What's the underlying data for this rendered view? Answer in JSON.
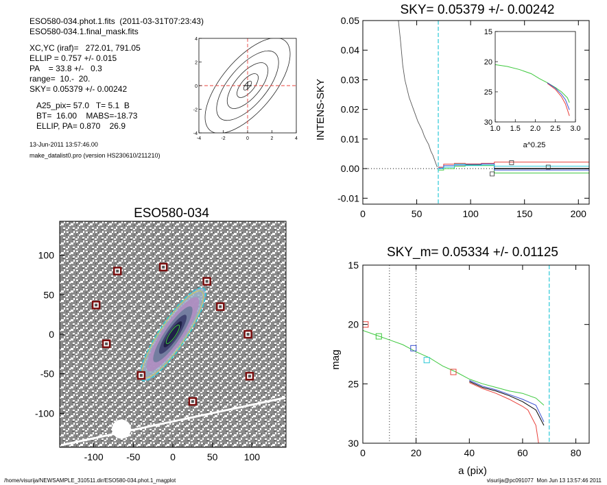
{
  "header": {
    "file_line": "ESO580-034.phot.1.fits  (2011-03-31T07:23:43)",
    "mask_line": "ESO580-034.1.final_mask.fits",
    "params": [
      "XC,YC (iraf)=   272.01, 791.05",
      "ELLIP = 0.757 +/- 0.015",
      "PA    = 33.8 +/-   0.3",
      "range=  10.-  20.",
      "SKY= 0.05379 +/- 0.00242"
    ],
    "catalog": [
      "A25_pix= 57.0   T= 5.1  B",
      "BT=  16.00    MABS=-18.73",
      "ELLIP, PA= 0.870    26.9"
    ],
    "date": "13-Jun-2011 13:57:46.00",
    "program": "make_datalist0.pro (version HS230610/211210)"
  },
  "footer": {
    "path": "/home/visurija/NEWSAMPLE_310511.dir/ESO580-034.phot.1_magplot",
    "user": "visurija@pc091077  Mon Jun 13 13:57:46 2011"
  },
  "colors": {
    "red": "#e8403a",
    "green": "#3cc83c",
    "blue": "#3a50d0",
    "cyan": "#28c8d8",
    "image_gray": "#8a8a8a",
    "marker": "#7a0f0f"
  },
  "chart_data": [
    {
      "id": "contour",
      "type": "contour",
      "xlim": [
        -4,
        4
      ],
      "ylim": [
        -4,
        4
      ],
      "x_ticks": [
        "-4",
        "-2",
        "0",
        "2",
        "4"
      ],
      "y_ticks": [
        "-4",
        "-2",
        "0",
        "2",
        "4"
      ],
      "center_crosshair": [
        0,
        0
      ],
      "levels_semi_axes": [
        [
          0.45,
          0.2
        ],
        [
          1.2,
          0.55
        ],
        [
          2.3,
          1.05
        ],
        [
          3.5,
          1.6
        ],
        [
          4.8,
          2.2
        ]
      ],
      "orientation_deg": -50
    },
    {
      "id": "sky_profile",
      "type": "line",
      "title": "SKY= 0.05379 +/- 0.00242",
      "xlabel": "",
      "ylabel": "INTENS-SKY",
      "xlim": [
        0,
        210
      ],
      "ylim": [
        -0.012,
        0.05
      ],
      "x_ticks": [
        "0",
        "50",
        "100",
        "150",
        "200"
      ],
      "y_ticks": [
        "-0.01",
        "0.00",
        "0.01",
        "0.02",
        "0.03",
        "0.04",
        "0.05"
      ],
      "vline": 70,
      "profile": {
        "x": [
          33,
          35,
          37,
          39,
          41,
          43,
          45,
          47,
          49,
          51,
          53,
          55,
          57,
          59,
          61,
          63,
          65,
          67,
          69
        ],
        "y": [
          0.05,
          0.043,
          0.035,
          0.03,
          0.027,
          0.024,
          0.022,
          0.02,
          0.018,
          0.016,
          0.0145,
          0.013,
          0.011,
          0.0095,
          0.0082,
          0.006,
          0.0045,
          0.0025,
          0.0005
        ]
      },
      "sky_steps": [
        {
          "name": "red",
          "x": [
            70,
            75,
            85,
            95,
            110,
            122,
            210
          ],
          "y": [
            0.0005,
            0.0015,
            0.0018,
            0.0016,
            0.0018,
            0.0022,
            0.0022
          ]
        },
        {
          "name": "green",
          "x": [
            70,
            75,
            85,
            95,
            110,
            122,
            210
          ],
          "y": [
            -0.0005,
            0.0,
            0.0008,
            0.0012,
            0.001,
            -0.0015,
            -0.0025
          ]
        },
        {
          "name": "blue",
          "x": [
            70,
            75,
            85,
            95,
            110,
            122,
            210
          ],
          "y": [
            0.0002,
            0.001,
            0.0012,
            0.0014,
            0.0016,
            -0.0005,
            -0.0005
          ]
        },
        {
          "name": "cyan",
          "x": [
            70,
            75,
            85,
            95,
            110,
            122,
            210
          ],
          "y": [
            0.0,
            0.0005,
            0.0015,
            0.001,
            0.0012,
            0.0008,
            0.0008
          ]
        },
        {
          "name": "black",
          "x": [
            122,
            210
          ],
          "y": [
            0.0,
            0.0
          ]
        }
      ],
      "boxes": [
        [
          120,
          -0.0018
        ],
        [
          138,
          0.002
        ],
        [
          172,
          0.0005
        ]
      ]
    },
    {
      "id": "inset",
      "type": "line",
      "xlabel": "a^0.25",
      "xlim": [
        1.0,
        3.0
      ],
      "ylim": [
        30,
        15
      ],
      "x_ticks": [
        "1.0",
        "1.5",
        "2.0",
        "2.5",
        "3.0"
      ],
      "y_ticks": [
        "15",
        "20",
        "25",
        "30"
      ],
      "series": [
        {
          "name": "green",
          "x": [
            1.0,
            1.3,
            1.6,
            1.9,
            2.1,
            2.3,
            2.5,
            2.65,
            2.8,
            2.85
          ],
          "y": [
            20.5,
            20.8,
            21.3,
            22.0,
            22.8,
            23.5,
            24.3,
            25.0,
            26.0,
            26.8
          ]
        },
        {
          "name": "red",
          "x": [
            2.3,
            2.5,
            2.65,
            2.75,
            2.85
          ],
          "y": [
            23.6,
            24.6,
            25.8,
            27.0,
            29.0
          ]
        },
        {
          "name": "blue",
          "x": [
            2.3,
            2.5,
            2.65,
            2.75,
            2.85
          ],
          "y": [
            23.5,
            24.4,
            25.4,
            26.3,
            28.0
          ]
        }
      ]
    },
    {
      "id": "galaxy_image",
      "type": "image",
      "title": "ESO580-034",
      "xlim": [
        -143,
        143
      ],
      "ylim": [
        -143,
        143
      ],
      "x_ticks": [
        "-100",
        "-50",
        "0",
        "50",
        "100"
      ],
      "y_ticks": [
        "100",
        "50",
        "0",
        "-50",
        "-100"
      ],
      "ellipse": {
        "cx": 0,
        "cy": 0,
        "a": 70,
        "b": 17,
        "pa_deg": 33.8
      },
      "stars": [
        [
          -70,
          80
        ],
        [
          -12,
          85
        ],
        [
          43,
          67
        ],
        [
          -97,
          37
        ],
        [
          60,
          35
        ],
        [
          -84,
          -12
        ],
        [
          95,
          0
        ],
        [
          -40,
          -52
        ],
        [
          97,
          -53
        ],
        [
          25,
          -85
        ]
      ]
    },
    {
      "id": "mag_profile",
      "type": "line",
      "title": "SKY_m=  0.05334 +/- 0.01125",
      "xlabel": "a (pix)",
      "ylabel": "mag",
      "xlim": [
        0,
        85
      ],
      "ylim": [
        30,
        15
      ],
      "x_ticks": [
        "0",
        "20",
        "40",
        "60",
        "80"
      ],
      "y_ticks": [
        "15",
        "20",
        "25",
        "30"
      ],
      "vlines_dotted": [
        10,
        20
      ],
      "vline_cyan": 70,
      "series": [
        {
          "name": "green",
          "x": [
            0,
            5,
            10,
            15,
            20,
            25,
            30,
            35,
            40,
            45,
            50,
            55,
            60,
            65,
            68
          ],
          "y": [
            20.5,
            20.9,
            21.3,
            21.7,
            22.3,
            22.8,
            23.5,
            24.0,
            24.6,
            25.0,
            25.3,
            25.6,
            25.8,
            26.2,
            26.8
          ]
        },
        {
          "name": "blue",
          "x": [
            40,
            45,
            50,
            55,
            60,
            65,
            68
          ],
          "y": [
            24.7,
            25.2,
            25.5,
            25.9,
            26.3,
            26.8,
            28.2
          ]
        },
        {
          "name": "black",
          "x": [
            40,
            45,
            50,
            55,
            60,
            65,
            68
          ],
          "y": [
            24.8,
            25.3,
            25.6,
            26.0,
            26.5,
            27.2,
            28.5
          ]
        },
        {
          "name": "red",
          "x": [
            40,
            45,
            50,
            55,
            60,
            62,
            65,
            66
          ],
          "y": [
            24.9,
            25.4,
            25.8,
            26.3,
            26.9,
            27.2,
            28.5,
            30.0
          ]
        }
      ],
      "boxes": [
        {
          "color": "red",
          "x": 1,
          "y": 20.0
        },
        {
          "color": "green",
          "x": 6,
          "y": 21.0
        },
        {
          "color": "blue",
          "x": 19,
          "y": 22.0
        },
        {
          "color": "cyan",
          "x": 24,
          "y": 23.0
        },
        {
          "color": "red",
          "x": 34,
          "y": 24.0
        }
      ]
    }
  ]
}
